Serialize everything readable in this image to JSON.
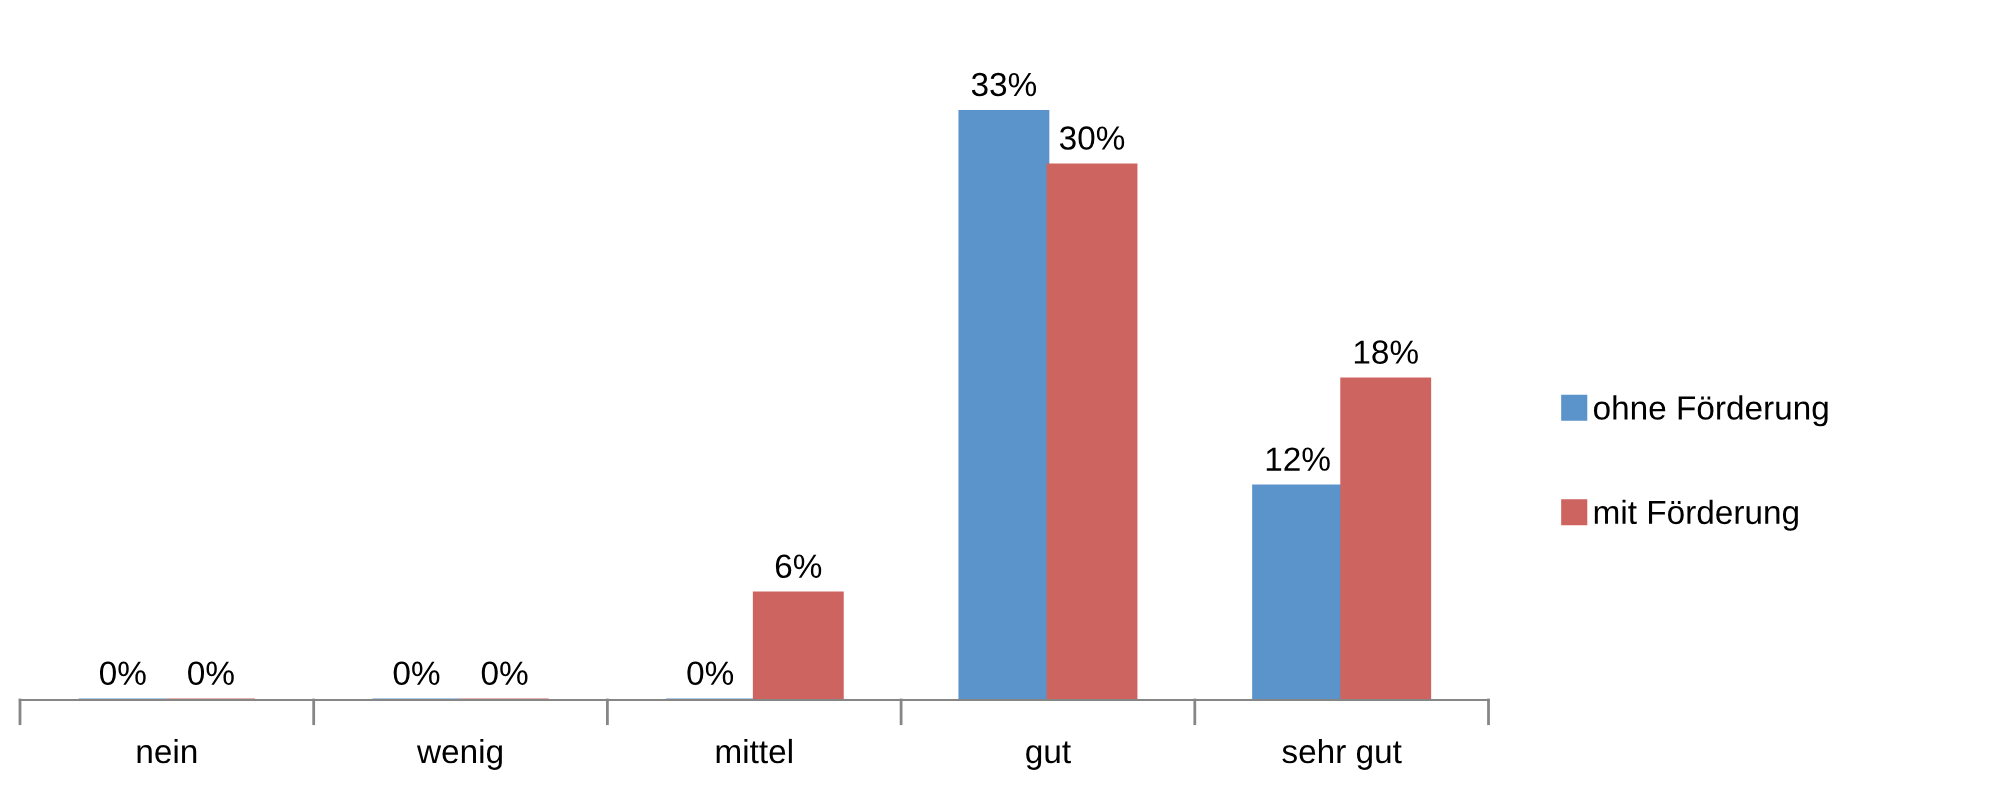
{
  "chart_data": {
    "type": "bar",
    "categories": [
      "nein",
      "wenig",
      "mittel",
      "gut",
      "sehr gut"
    ],
    "series": [
      {
        "name": "ohne Förderung",
        "color": "#5b93cb",
        "values": [
          0,
          0,
          0,
          33,
          12
        ],
        "value_labels": [
          "0%",
          "0%",
          "0%",
          "33%",
          "12%"
        ]
      },
      {
        "name": "mit Förderung",
        "color": "#cd6460",
        "values": [
          0,
          0,
          6,
          30,
          18
        ],
        "value_labels": [
          "0%",
          "0%",
          "6%",
          "30%",
          "18%"
        ]
      }
    ],
    "legend": "right",
    "grid": false
  }
}
